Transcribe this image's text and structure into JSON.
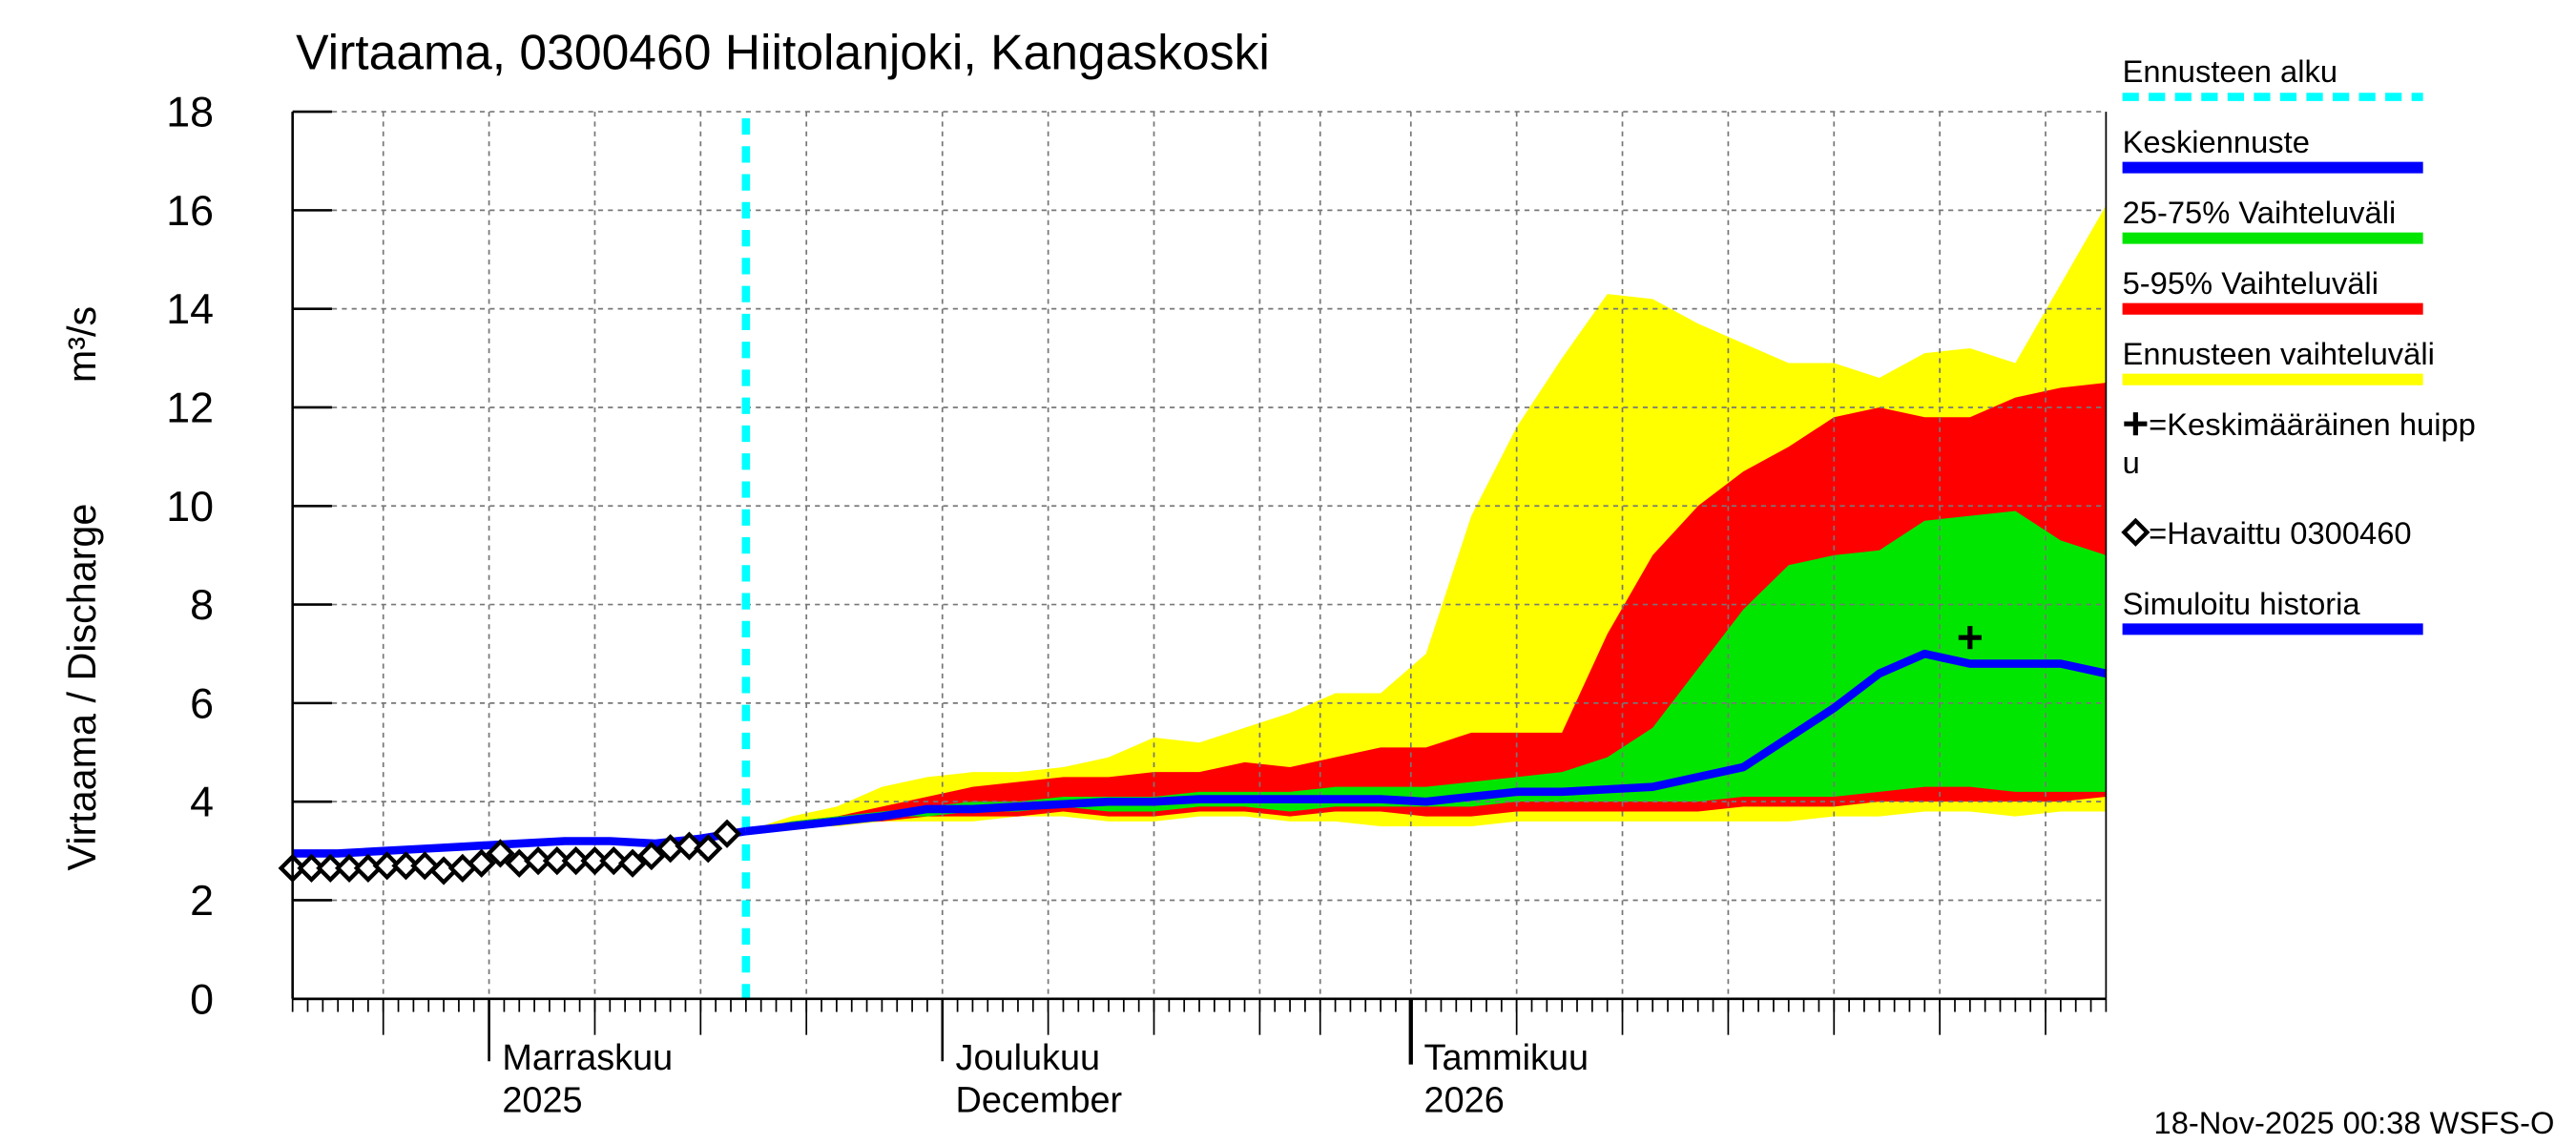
{
  "chart_data": {
    "type": "area",
    "title": "Virtaama, 0300460 Hiitolanjoki, Kangaskoski",
    "y_label": "Virtaama / Discharge",
    "y_unit": "m³/s",
    "footer": "18-Nov-2025 00:38 WSFS-O",
    "xlim": [
      0,
      120
    ],
    "ylim": [
      0,
      18
    ],
    "yticks": [
      0,
      2,
      4,
      6,
      8,
      10,
      12,
      14,
      16,
      18
    ],
    "xticks": [
      {
        "value": 13,
        "label": [
          "Marraskuu",
          "2025"
        ]
      },
      {
        "value": 43,
        "label": [
          "Joulukuu",
          "December"
        ]
      },
      {
        "value": 74,
        "label": [
          "Tammikuu",
          "2026"
        ]
      }
    ],
    "minor_xticks": [
      6,
      20,
      27,
      34,
      50,
      57,
      64,
      68,
      81,
      88,
      95,
      102,
      109,
      116
    ],
    "grid": true,
    "series": [
      {
        "name": "Ennusteen alku",
        "type": "vline",
        "color": "#00ffff",
        "x": 30
      },
      {
        "name": "Keskiennuste",
        "type": "line",
        "color": "#0000ff",
        "x": [
          30,
          33,
          36,
          39,
          42,
          45,
          48,
          51,
          54,
          57,
          60,
          63,
          66,
          69,
          72,
          75,
          78,
          81,
          84,
          87,
          90,
          93,
          96,
          99,
          102,
          105,
          108,
          111,
          114,
          117,
          120
        ],
        "values": [
          3.4,
          3.5,
          3.6,
          3.7,
          3.85,
          3.85,
          3.9,
          3.95,
          4.0,
          4.0,
          4.05,
          4.05,
          4.05,
          4.05,
          4.05,
          4.0,
          4.1,
          4.2,
          4.2,
          4.25,
          4.3,
          4.5,
          4.7,
          5.3,
          5.9,
          6.6,
          7.0,
          6.8,
          6.8,
          6.8,
          6.6
        ]
      },
      {
        "name": "25-75% Vaihteluväli",
        "type": "band",
        "color": "#00e600",
        "x": [
          30,
          33,
          36,
          39,
          42,
          45,
          48,
          51,
          54,
          57,
          60,
          63,
          66,
          69,
          72,
          75,
          78,
          81,
          84,
          87,
          90,
          93,
          96,
          99,
          102,
          105,
          108,
          111,
          114,
          117,
          120
        ],
        "low": [
          3.4,
          3.5,
          3.6,
          3.7,
          3.7,
          3.8,
          3.8,
          3.9,
          3.8,
          3.8,
          3.9,
          3.9,
          3.8,
          3.9,
          3.9,
          3.9,
          3.9,
          4.0,
          4.0,
          4.0,
          4.0,
          4.0,
          4.1,
          4.1,
          4.1,
          4.2,
          4.3,
          4.3,
          4.2,
          4.2,
          4.2
        ],
        "high": [
          3.4,
          3.6,
          3.7,
          3.8,
          3.9,
          4.0,
          4.0,
          4.1,
          4.1,
          4.1,
          4.2,
          4.2,
          4.2,
          4.3,
          4.3,
          4.3,
          4.4,
          4.5,
          4.6,
          4.9,
          5.5,
          6.7,
          7.9,
          8.8,
          9.0,
          9.1,
          9.7,
          9.8,
          9.9,
          9.3,
          9.0
        ]
      },
      {
        "name": "5-95% Vaihteluväli",
        "type": "band",
        "color": "#ff0000",
        "x": [
          30,
          33,
          36,
          39,
          42,
          45,
          48,
          51,
          54,
          57,
          60,
          63,
          66,
          69,
          72,
          75,
          78,
          81,
          84,
          87,
          90,
          93,
          96,
          99,
          102,
          105,
          108,
          111,
          114,
          117,
          120
        ],
        "low": [
          3.4,
          3.5,
          3.6,
          3.6,
          3.7,
          3.7,
          3.7,
          3.8,
          3.7,
          3.7,
          3.8,
          3.8,
          3.7,
          3.8,
          3.8,
          3.7,
          3.7,
          3.8,
          3.8,
          3.8,
          3.8,
          3.8,
          3.9,
          3.9,
          3.9,
          4.0,
          4.0,
          4.0,
          4.0,
          4.0,
          4.1
        ],
        "high": [
          3.4,
          3.6,
          3.7,
          3.9,
          4.1,
          4.3,
          4.4,
          4.5,
          4.5,
          4.6,
          4.6,
          4.8,
          4.7,
          4.9,
          5.1,
          5.1,
          5.4,
          5.4,
          5.4,
          7.4,
          9.0,
          10.0,
          10.7,
          11.2,
          11.8,
          12.0,
          11.8,
          11.8,
          12.2,
          12.4,
          12.5
        ]
      },
      {
        "name": "Ennusteen vaihteluväli",
        "type": "band",
        "color": "#ffff00",
        "x": [
          30,
          33,
          36,
          39,
          42,
          45,
          48,
          51,
          54,
          57,
          60,
          63,
          66,
          69,
          72,
          75,
          78,
          81,
          84,
          87,
          90,
          93,
          96,
          99,
          102,
          105,
          108,
          111,
          114,
          117,
          120
        ],
        "low": [
          3.4,
          3.5,
          3.5,
          3.6,
          3.6,
          3.6,
          3.7,
          3.7,
          3.6,
          3.6,
          3.7,
          3.7,
          3.6,
          3.6,
          3.5,
          3.5,
          3.5,
          3.6,
          3.6,
          3.6,
          3.6,
          3.6,
          3.6,
          3.6,
          3.7,
          3.7,
          3.8,
          3.8,
          3.7,
          3.8,
          3.8
        ],
        "high": [
          3.4,
          3.7,
          3.9,
          4.3,
          4.5,
          4.6,
          4.6,
          4.7,
          4.9,
          5.3,
          5.2,
          5.5,
          5.8,
          6.2,
          6.2,
          7.0,
          9.8,
          11.6,
          13.0,
          14.3,
          14.2,
          13.7,
          13.3,
          12.9,
          12.9,
          12.6,
          13.1,
          13.2,
          12.9,
          14.5,
          16.1
        ]
      },
      {
        "name": "=Keskimääräinen huippu",
        "type": "marker",
        "marker": "plus",
        "color": "#000000",
        "x": [
          111
        ],
        "values": [
          7.33
        ]
      },
      {
        "name": "=Havaittu 0300460",
        "type": "marker",
        "marker": "diamond",
        "color": "#000000",
        "x": [
          0,
          1.25,
          2.5,
          3.75,
          5,
          6.25,
          7.5,
          8.75,
          10,
          11.25,
          12.5,
          13.75,
          15,
          16.25,
          17.5,
          18.75,
          20,
          21.25,
          22.5,
          23.75,
          25,
          26.25,
          27.5,
          28.75
        ],
        "values": [
          2.65,
          2.65,
          2.65,
          2.65,
          2.65,
          2.7,
          2.7,
          2.7,
          2.6,
          2.65,
          2.75,
          2.95,
          2.75,
          2.8,
          2.8,
          2.8,
          2.8,
          2.8,
          2.75,
          2.9,
          3.05,
          3.1,
          3.05,
          3.35
        ]
      },
      {
        "name": "Simuloitu historia",
        "type": "line",
        "color": "#0000ff",
        "x": [
          0,
          3,
          6,
          9,
          12,
          15,
          18,
          21,
          24,
          27,
          30
        ],
        "values": [
          2.95,
          2.95,
          3.0,
          3.05,
          3.1,
          3.15,
          3.2,
          3.2,
          3.15,
          3.25,
          3.4
        ]
      }
    ]
  }
}
